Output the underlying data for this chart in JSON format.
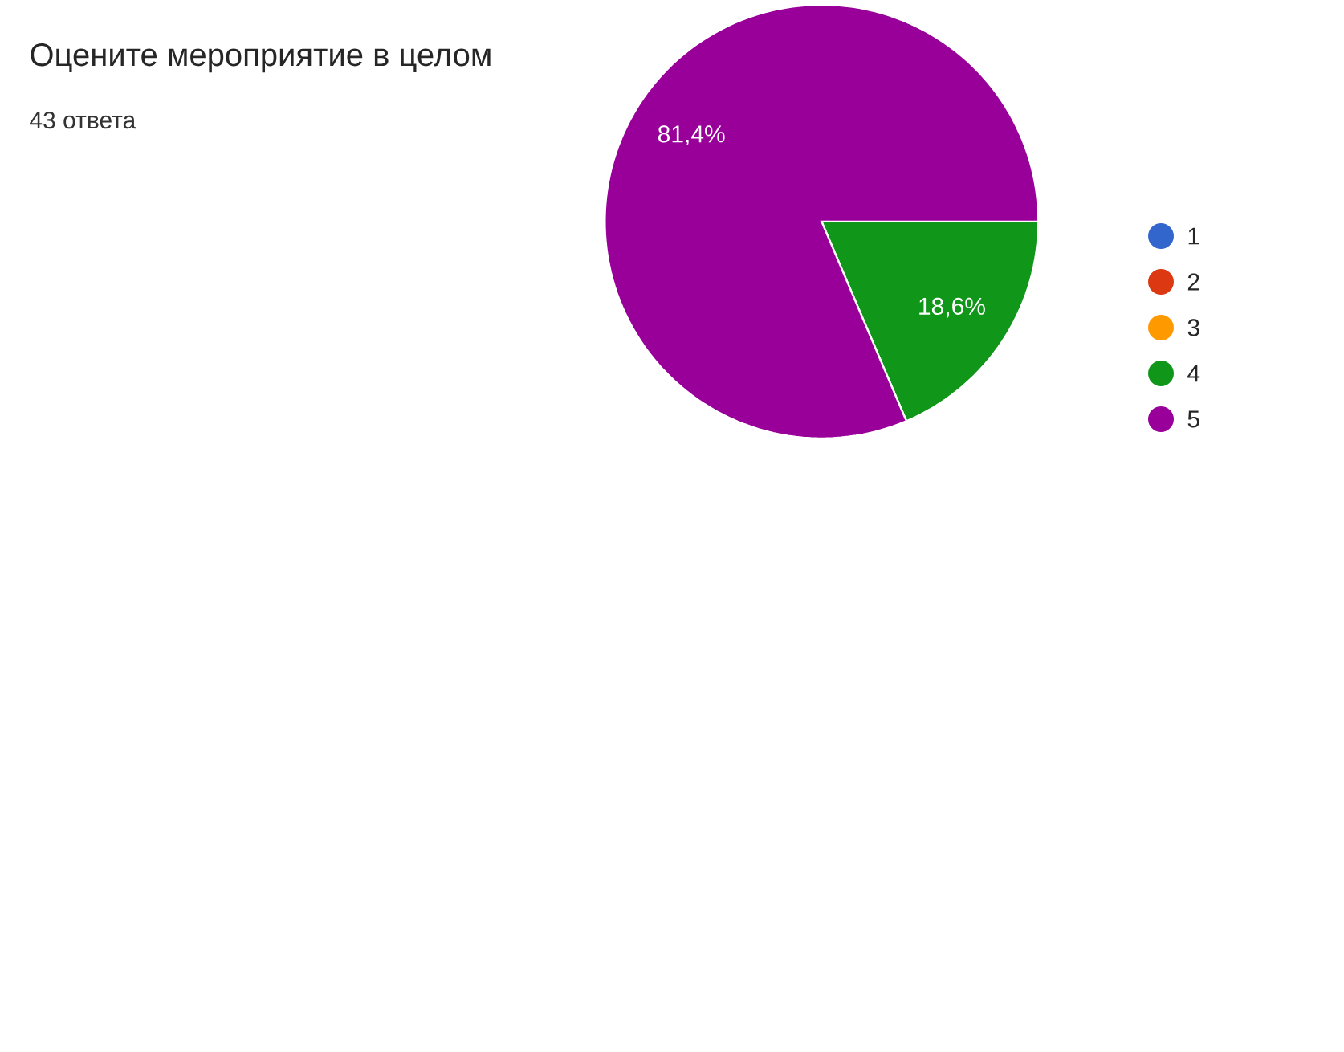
{
  "chart_data": {
    "type": "pie",
    "title": "Оцените мероприятие в целом",
    "subtitle": "43 ответа",
    "categories": [
      "1",
      "2",
      "3",
      "4",
      "5"
    ],
    "values": [
      0,
      0,
      0,
      18.6,
      81.4
    ],
    "value_labels": [
      null,
      null,
      null,
      "18,6%",
      "81,4%"
    ],
    "colors": [
      "#3366cc",
      "#dc3912",
      "#ff9900",
      "#109618",
      "#990099"
    ],
    "legend": "right"
  }
}
